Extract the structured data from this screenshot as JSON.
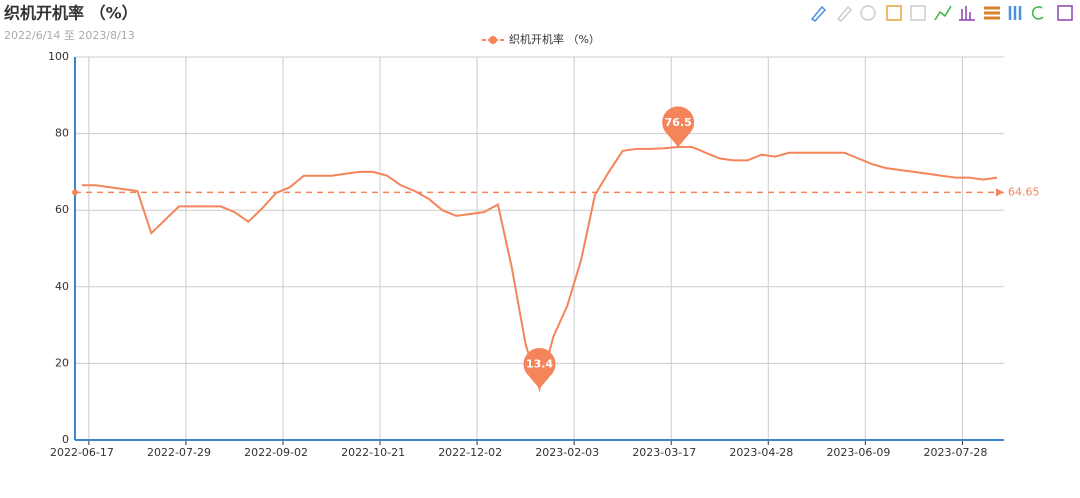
{
  "chart_data": {
    "type": "line",
    "title": "织机开机率 （%）",
    "subtitle": "2022/6/14 至 2023/8/13",
    "categories": [
      "2022-06-17",
      null,
      null,
      null,
      null,
      null,
      null,
      "2022-07-29",
      null,
      null,
      null,
      null,
      null,
      null,
      "2022-09-02",
      null,
      null,
      null,
      null,
      null,
      null,
      "2022-10-21",
      null,
      null,
      null,
      null,
      null,
      null,
      "2022-12-02",
      null,
      null,
      null,
      null,
      null,
      null,
      "2023-02-03",
      null,
      null,
      null,
      null,
      null,
      null,
      "2023-03-17",
      null,
      null,
      null,
      null,
      null,
      null,
      "2023-04-28",
      null,
      null,
      null,
      null,
      null,
      null,
      "2023-06-09",
      null,
      null,
      null,
      null,
      null,
      null,
      "2023-07-28",
      null,
      null,
      null
    ],
    "series": [
      {
        "name": "织机开机率 （%）",
        "color": "#f4845a",
        "values": [
          66.5,
          66.5,
          66,
          65.5,
          65,
          54,
          57.5,
          61,
          61,
          61,
          61,
          59.5,
          57,
          60.5,
          64.5,
          66,
          69,
          69,
          69,
          69.5,
          70,
          70,
          69,
          66.5,
          65,
          63,
          60,
          58.5,
          59,
          59.5,
          61.5,
          45,
          25,
          13.4,
          27,
          35,
          47,
          64,
          70,
          75.5,
          76,
          76,
          76.2,
          76.5,
          76.5,
          75,
          73.5,
          73,
          73,
          74.5,
          74,
          75,
          75,
          75,
          75,
          75,
          73.5,
          72,
          71,
          70.5,
          70,
          69.5,
          69,
          68.5,
          68.5,
          68,
          68.5
        ],
        "average": 64.65
      }
    ],
    "ylim": [
      0,
      100
    ],
    "yticks": [
      0,
      20,
      40,
      60,
      80,
      100
    ],
    "grid": true
  }
}
